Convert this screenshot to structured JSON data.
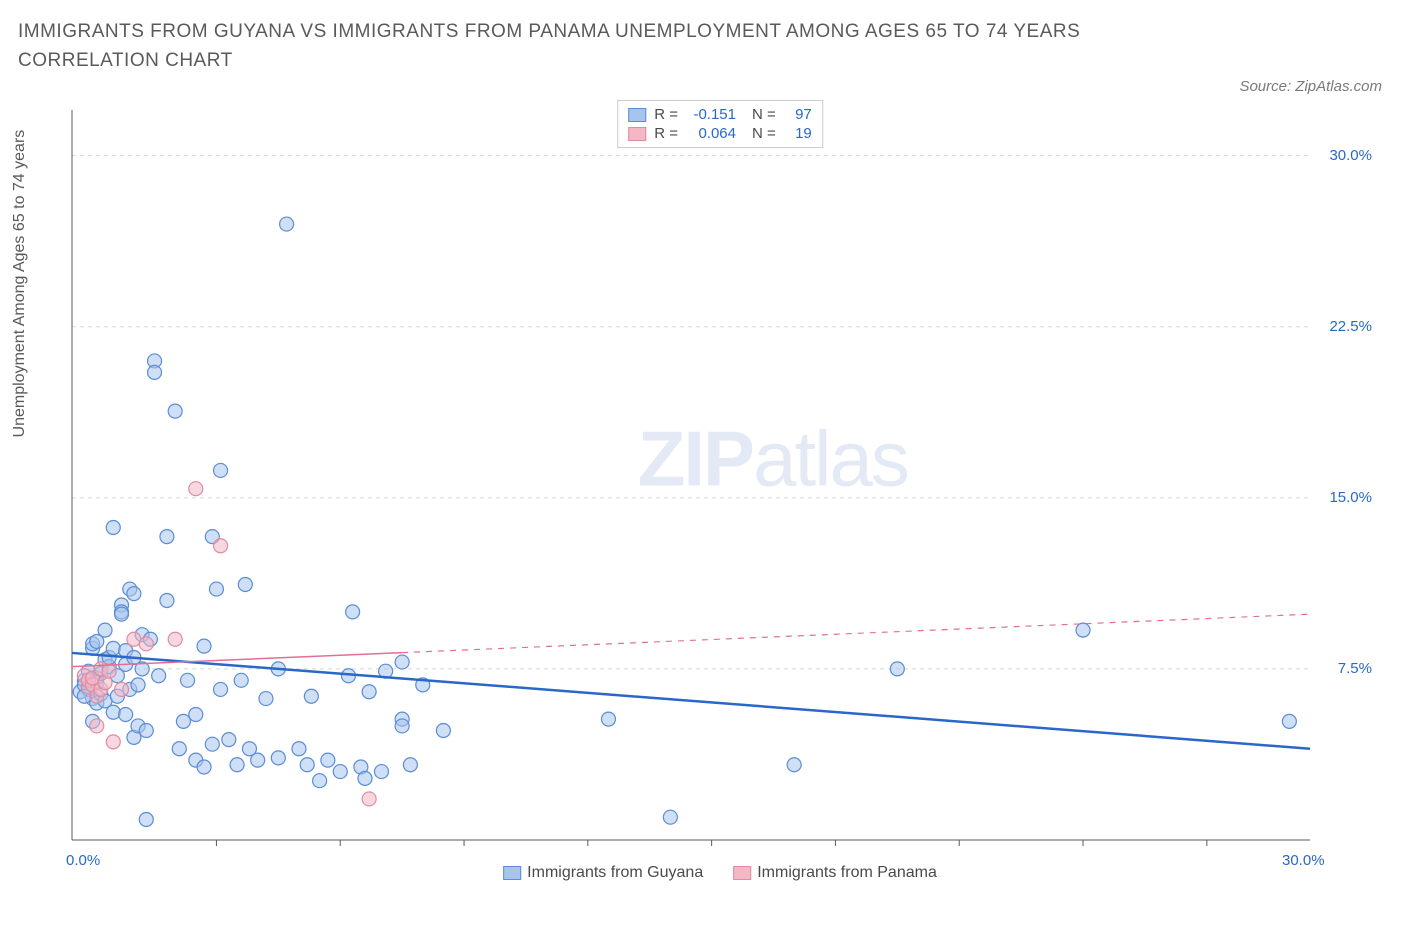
{
  "title": "IMMIGRANTS FROM GUYANA VS IMMIGRANTS FROM PANAMA UNEMPLOYMENT AMONG AGES 65 TO 74 YEARS CORRELATION CHART",
  "source": "Source: ZipAtlas.com",
  "watermark_bold": "ZIP",
  "watermark_light": "atlas",
  "y_axis_label": "Unemployment Among Ages 65 to 74 years",
  "chart": {
    "type": "scatter",
    "xlim": [
      0,
      30
    ],
    "ylim": [
      0,
      32
    ],
    "x_ticks": [
      0,
      30
    ],
    "x_tick_labels": [
      "0.0%",
      "30.0%"
    ],
    "x_minor_ticks": [
      3.5,
      6.5,
      9.5,
      12.5,
      15.5,
      18.5,
      21.5,
      24.5,
      27.5
    ],
    "y_ticks": [
      7.5,
      15.0,
      22.5,
      30.0
    ],
    "y_tick_labels": [
      "7.5%",
      "15.0%",
      "22.5%",
      "30.0%"
    ],
    "grid_color": "#d8d8d8",
    "axis_line_color": "#5a5a5a",
    "background_color": "#ffffff",
    "marker_radius": 7,
    "marker_stroke_width": 1.2,
    "series": [
      {
        "name": "Immigrants from Guyana",
        "fill": "#a7c4ec",
        "fill_opacity": 0.55,
        "stroke": "#5a8dd6",
        "r_value": "-0.151",
        "n_value": "97",
        "trend": {
          "x1": 0,
          "y1": 8.2,
          "x2": 30,
          "y2": 4.0,
          "solid_until_x": 30,
          "color": "#2968c8",
          "width": 2.5
        },
        "points": [
          [
            0.2,
            6.5
          ],
          [
            0.3,
            7.0
          ],
          [
            0.3,
            6.8
          ],
          [
            0.4,
            6.6
          ],
          [
            0.4,
            7.4
          ],
          [
            0.5,
            5.2
          ],
          [
            0.5,
            6.2
          ],
          [
            0.5,
            8.4
          ],
          [
            0.5,
            8.6
          ],
          [
            0.6,
            6.0
          ],
          [
            0.6,
            7.1
          ],
          [
            0.6,
            8.7
          ],
          [
            0.6,
            6.9
          ],
          [
            0.7,
            6.4
          ],
          [
            0.7,
            7.3
          ],
          [
            0.8,
            7.9
          ],
          [
            0.8,
            9.2
          ],
          [
            0.8,
            6.1
          ],
          [
            0.9,
            7.6
          ],
          [
            0.9,
            8.0
          ],
          [
            1.0,
            13.7
          ],
          [
            1.0,
            5.6
          ],
          [
            1.0,
            8.4
          ],
          [
            1.1,
            6.3
          ],
          [
            1.1,
            7.2
          ],
          [
            1.2,
            10.3
          ],
          [
            1.2,
            10.0
          ],
          [
            1.2,
            9.9
          ],
          [
            1.3,
            7.7
          ],
          [
            1.3,
            8.3
          ],
          [
            1.3,
            5.5
          ],
          [
            1.4,
            11.0
          ],
          [
            1.4,
            6.6
          ],
          [
            1.5,
            4.5
          ],
          [
            1.5,
            10.8
          ],
          [
            1.5,
            8.0
          ],
          [
            1.6,
            5.0
          ],
          [
            1.6,
            6.8
          ],
          [
            1.7,
            7.5
          ],
          [
            1.7,
            9.0
          ],
          [
            1.8,
            0.9
          ],
          [
            1.8,
            4.8
          ],
          [
            1.9,
            8.8
          ],
          [
            2.0,
            21.0
          ],
          [
            2.0,
            20.5
          ],
          [
            2.1,
            7.2
          ],
          [
            2.3,
            13.3
          ],
          [
            2.3,
            10.5
          ],
          [
            2.5,
            18.8
          ],
          [
            2.6,
            4.0
          ],
          [
            2.7,
            5.2
          ],
          [
            2.8,
            7.0
          ],
          [
            3.0,
            3.5
          ],
          [
            3.0,
            5.5
          ],
          [
            3.2,
            8.5
          ],
          [
            3.2,
            3.2
          ],
          [
            3.4,
            4.2
          ],
          [
            3.4,
            13.3
          ],
          [
            3.5,
            11.0
          ],
          [
            3.6,
            6.6
          ],
          [
            3.6,
            16.2
          ],
          [
            3.8,
            4.4
          ],
          [
            4.0,
            3.3
          ],
          [
            4.1,
            7.0
          ],
          [
            4.2,
            11.2
          ],
          [
            4.3,
            4.0
          ],
          [
            4.5,
            3.5
          ],
          [
            4.7,
            6.2
          ],
          [
            5.0,
            3.6
          ],
          [
            5.0,
            7.5
          ],
          [
            5.2,
            27.0
          ],
          [
            5.5,
            4.0
          ],
          [
            5.7,
            3.3
          ],
          [
            5.8,
            6.3
          ],
          [
            6.0,
            2.6
          ],
          [
            6.2,
            3.5
          ],
          [
            6.5,
            3.0
          ],
          [
            6.7,
            7.2
          ],
          [
            6.8,
            10.0
          ],
          [
            7.0,
            3.2
          ],
          [
            7.1,
            2.7
          ],
          [
            7.2,
            6.5
          ],
          [
            7.5,
            3.0
          ],
          [
            7.6,
            7.4
          ],
          [
            8.0,
            5.3
          ],
          [
            8.0,
            5.0
          ],
          [
            8.0,
            7.8
          ],
          [
            8.2,
            3.3
          ],
          [
            8.5,
            6.8
          ],
          [
            9.0,
            4.8
          ],
          [
            13.0,
            5.3
          ],
          [
            14.5,
            1.0
          ],
          [
            17.5,
            3.3
          ],
          [
            20.0,
            7.5
          ],
          [
            24.5,
            9.2
          ],
          [
            29.5,
            5.2
          ],
          [
            0.3,
            6.3
          ]
        ]
      },
      {
        "name": "Immigrants from Panama",
        "fill": "#f2b8c6",
        "fill_opacity": 0.55,
        "stroke": "#e28aa0",
        "r_value": "0.064",
        "n_value": "19",
        "trend": {
          "x1": 0,
          "y1": 7.6,
          "x2": 30,
          "y2": 9.9,
          "solid_until_x": 8,
          "color": "#e46f92",
          "width": 1.5
        },
        "points": [
          [
            0.3,
            7.2
          ],
          [
            0.4,
            6.7
          ],
          [
            0.4,
            7.0
          ],
          [
            0.5,
            6.8
          ],
          [
            0.5,
            7.1
          ],
          [
            0.6,
            6.3
          ],
          [
            0.6,
            5.0
          ],
          [
            0.7,
            6.6
          ],
          [
            0.7,
            7.5
          ],
          [
            0.8,
            6.9
          ],
          [
            0.9,
            7.4
          ],
          [
            1.0,
            4.3
          ],
          [
            1.2,
            6.6
          ],
          [
            1.5,
            8.8
          ],
          [
            1.8,
            8.6
          ],
          [
            2.5,
            8.8
          ],
          [
            3.0,
            15.4
          ],
          [
            3.6,
            12.9
          ],
          [
            7.2,
            1.8
          ]
        ]
      }
    ]
  },
  "legend_top": [
    {
      "swatch_fill": "#a7c4ec",
      "swatch_stroke": "#5a8dd6",
      "r": "-0.151",
      "n": "97"
    },
    {
      "swatch_fill": "#f2b8c6",
      "swatch_stroke": "#e28aa0",
      "r": "0.064",
      "n": "19"
    }
  ],
  "legend_bottom": [
    {
      "swatch_fill": "#a7c4ec",
      "swatch_stroke": "#5a8dd6",
      "label": "Immigrants from Guyana"
    },
    {
      "swatch_fill": "#f2b8c6",
      "swatch_stroke": "#e28aa0",
      "label": "Immigrants from Panama"
    }
  ]
}
